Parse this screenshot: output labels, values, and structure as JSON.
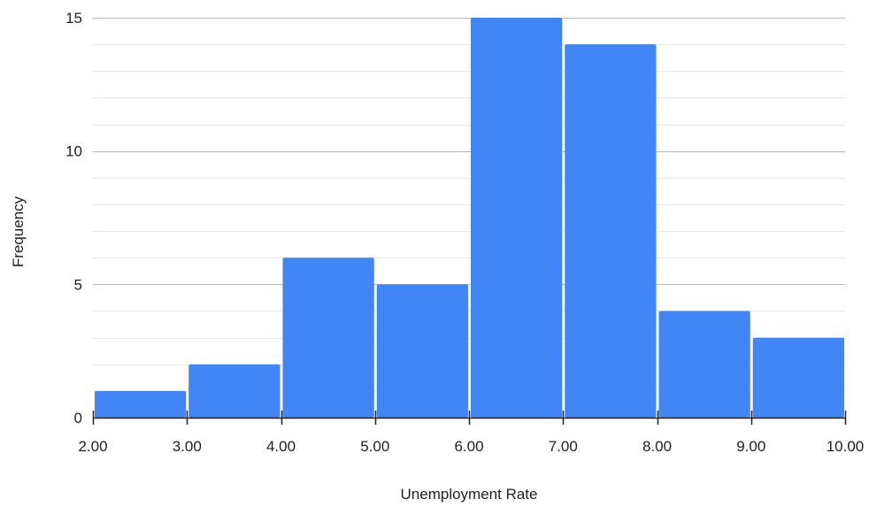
{
  "chart_data": {
    "type": "bar",
    "title": "",
    "xlabel": "Unemployment Rate",
    "ylabel": "Frequency",
    "bins": [
      {
        "start": 2,
        "end": 3,
        "count": 1
      },
      {
        "start": 3,
        "end": 4,
        "count": 2
      },
      {
        "start": 4,
        "end": 5,
        "count": 6
      },
      {
        "start": 5,
        "end": 6,
        "count": 5
      },
      {
        "start": 6,
        "end": 7,
        "count": 15
      },
      {
        "start": 7,
        "end": 8,
        "count": 14
      },
      {
        "start": 8,
        "end": 9,
        "count": 4
      },
      {
        "start": 9,
        "end": 10,
        "count": 3
      }
    ],
    "x_ticks": [
      "2.00",
      "3.00",
      "4.00",
      "5.00",
      "6.00",
      "7.00",
      "8.00",
      "9.00",
      "10.00"
    ],
    "y_ticks": [
      "0",
      "5",
      "10",
      "15"
    ],
    "xlim": [
      2,
      10
    ],
    "ylim": [
      0,
      15
    ],
    "y_minor_step": 1,
    "grid": true,
    "legend": "none",
    "colors": {
      "bar": "#4285f4",
      "major_grid": "#b7b7b7",
      "minor_grid": "#e6e6e6",
      "axis": "#222222"
    }
  }
}
